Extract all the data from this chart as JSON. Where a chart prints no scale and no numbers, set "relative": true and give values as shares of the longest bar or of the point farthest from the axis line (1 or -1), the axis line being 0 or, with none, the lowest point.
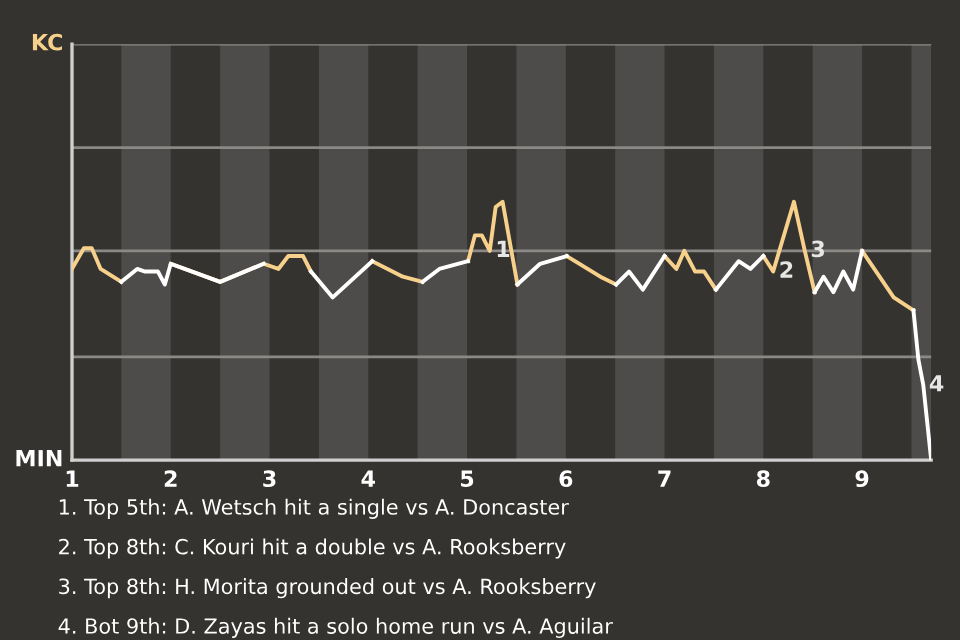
{
  "chart_data": {
    "type": "line",
    "relative": true,
    "x": [
      1.0,
      1.12,
      1.2,
      1.29,
      1.5,
      1.66,
      1.74,
      1.87,
      1.94,
      2.0,
      2.5,
      2.94,
      3.09,
      3.19,
      3.34,
      3.42,
      3.64,
      4.04,
      4.35,
      4.55,
      4.72,
      5.01,
      5.08,
      5.15,
      5.23,
      5.29,
      5.36,
      5.51,
      5.74,
      6.01,
      6.35,
      6.51,
      6.64,
      6.78,
      7.0,
      7.12,
      7.2,
      7.31,
      7.4,
      7.52,
      7.75,
      7.87,
      8.0,
      8.1,
      8.31,
      8.42,
      8.52,
      8.61,
      8.71,
      8.81,
      8.91,
      9.0,
      9.32,
      9.52,
      9.57,
      9.62,
      9.7
    ],
    "series": [
      {
        "color": "#f7d18b",
        "values": [
          0.74,
          0.82,
          0.82,
          0.74,
          0.69,
          null,
          null,
          null,
          null,
          0.76,
          0.69,
          0.76,
          0.74,
          0.79,
          0.79,
          0.73,
          null,
          0.77,
          0.71,
          0.69,
          null,
          0.77,
          0.87,
          0.87,
          0.81,
          0.98,
          1,
          0.68,
          null,
          0.79,
          0.71,
          0.68,
          null,
          null,
          0.79,
          0.74,
          0.81,
          0.73,
          0.73,
          0.66,
          null,
          null,
          0.79,
          0.73,
          1,
          0.81,
          0.65,
          null,
          null,
          null,
          null,
          0.81,
          0.63,
          0.58,
          null,
          null,
          null
        ]
      },
      {
        "color": "#ffffff",
        "values": [
          null,
          null,
          null,
          null,
          0.69,
          0.74,
          0.73,
          0.73,
          0.68,
          0.76,
          0.69,
          0.76,
          null,
          null,
          null,
          0.73,
          0.63,
          0.77,
          null,
          0.69,
          0.74,
          0.77,
          null,
          null,
          null,
          null,
          null,
          0.68,
          0.76,
          0.79,
          null,
          0.68,
          0.73,
          0.66,
          0.79,
          null,
          null,
          null,
          null,
          0.66,
          0.77,
          0.74,
          0.79,
          null,
          null,
          null,
          0.65,
          0.71,
          0.65,
          0.73,
          0.66,
          0.81,
          null,
          0.58,
          0.39,
          0.29,
          0
        ]
      }
    ],
    "xlim": [
      1,
      9.7
    ],
    "xticks": [
      1,
      2,
      3,
      4,
      5,
      6,
      7,
      8,
      9
    ],
    "ref_lines": [
      {
        "axis": "y",
        "value": 0.4,
        "color": "#8a8986"
      },
      {
        "axis": "y",
        "value": 0.81,
        "color": "#8a8986"
      },
      {
        "axis": "y",
        "value": 1.21,
        "color": "#8a8986"
      },
      {
        "axis": "y",
        "value": 1.61,
        "color": "#8a8986"
      }
    ],
    "line_style": "solid",
    "bands": [
      {
        "axis": "x",
        "from": 1.5,
        "to": 2,
        "color": "#4d4c4b"
      },
      {
        "axis": "x",
        "from": 2.5,
        "to": 3,
        "color": "#4d4c4b"
      },
      {
        "axis": "x",
        "from": 3.5,
        "to": 4,
        "color": "#4d4c4b"
      },
      {
        "axis": "x",
        "from": 4.5,
        "to": 5,
        "color": "#4d4c4b"
      },
      {
        "axis": "x",
        "from": 5.5,
        "to": 6,
        "color": "#4d4c4b"
      },
      {
        "axis": "x",
        "from": 6.5,
        "to": 7,
        "color": "#4d4c4b"
      },
      {
        "axis": "x",
        "from": 7.5,
        "to": 8,
        "color": "#4d4c4b"
      },
      {
        "axis": "x",
        "from": 8.5,
        "to": 9,
        "color": "#4d4c4b"
      },
      {
        "axis": "x",
        "from": 9.5,
        "to": 9.7,
        "color": "#4d4c4b"
      }
    ],
    "annotations": [
      {
        "text": "1",
        "x": 5.23,
        "y": 0.81
      },
      {
        "text": "2",
        "x": 8.1,
        "y": 0.73
      },
      {
        "text": "3",
        "x": 8.42,
        "y": 0.81
      },
      {
        "text": "4",
        "x": 9.62,
        "y": 0.29
      },
      "KC",
      "MIN",
      "1. Top 5th: A. Wetsch hit a single vs A. Doncaster",
      "2. Top 8th: C. Kouri hit a double vs A. Rooksberry",
      "3. Top 8th: H. Morita grounded out vs A. Rooksberry",
      "4. Bot 9th: D. Zayas hit a solo home run vs A. Aguilar"
    ]
  }
}
